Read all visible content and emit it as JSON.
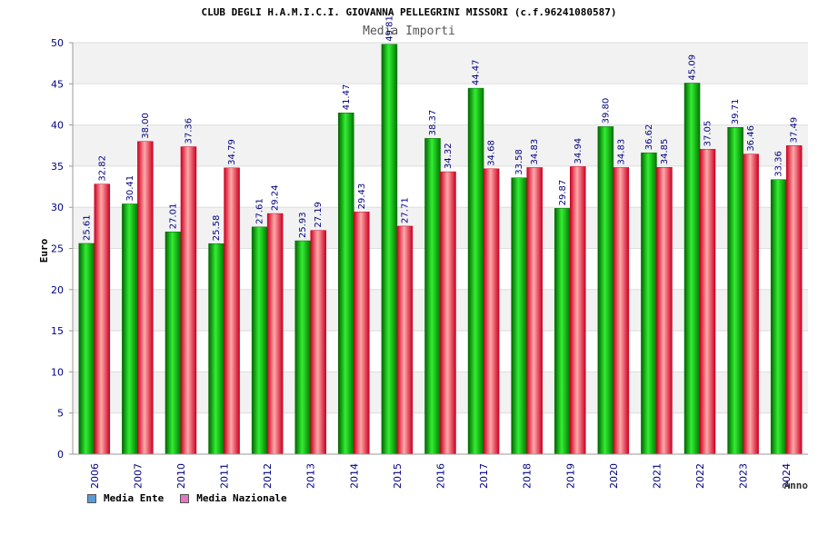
{
  "chart_data": {
    "type": "bar",
    "title": "CLUB DEGLI H.A.M.I.C.I. GIOVANNA PELLEGRINI MISSORI (c.f.96241080587)",
    "subtitle": "Media Importi",
    "xlabel": "Anno",
    "ylabel": "Euro",
    "ylim": [
      0,
      50
    ],
    "yticks": [
      0,
      5,
      10,
      15,
      20,
      25,
      30,
      35,
      40,
      45,
      50
    ],
    "grid": true,
    "legend_position": "bottom-left",
    "categories": [
      "2006",
      "2007",
      "2010",
      "2011",
      "2012",
      "2013",
      "2014",
      "2015",
      "2016",
      "2017",
      "2018",
      "2019",
      "2020",
      "2021",
      "2022",
      "2023",
      "2024"
    ],
    "series": [
      {
        "name": "Media Ente",
        "values": [
          25.61,
          30.41,
          27.01,
          25.58,
          27.61,
          25.93,
          41.47,
          49.81,
          38.37,
          44.47,
          33.58,
          29.87,
          39.8,
          36.62,
          45.09,
          39.71,
          33.36
        ],
        "labels": [
          "25.61",
          "30.41",
          "27.01",
          "25.58",
          "27.61",
          "25.93",
          "41.47",
          "49.81",
          "38.37",
          "44.47",
          "33.58",
          "29.87",
          "39.80",
          "36.62",
          "45.09",
          "39.71",
          "33.36"
        ]
      },
      {
        "name": "Media Nazionale",
        "values": [
          32.82,
          38.0,
          37.36,
          34.79,
          29.24,
          27.19,
          29.43,
          27.71,
          34.32,
          34.68,
          34.83,
          34.94,
          34.83,
          34.85,
          37.05,
          36.46,
          37.49
        ],
        "labels": [
          "32.82",
          "38.00",
          "37.36",
          "34.79",
          "29.24",
          "27.19",
          "29.43",
          "27.71",
          "34.32",
          "34.68",
          "34.83",
          "34.94",
          "34.83",
          "34.85",
          "37.05",
          "36.46",
          "37.49"
        ]
      }
    ]
  },
  "colors": {
    "ente_dark": "#006600",
    "ente_light": "#33ee33",
    "naz_dark": "#cc0022",
    "naz_light": "#ffaaaa",
    "axis_text": "#000080",
    "band": "#f2f2f2",
    "grid": "#dddddd",
    "legend_ente": "#5b9bd5",
    "legend_naz": "#e377c2"
  }
}
